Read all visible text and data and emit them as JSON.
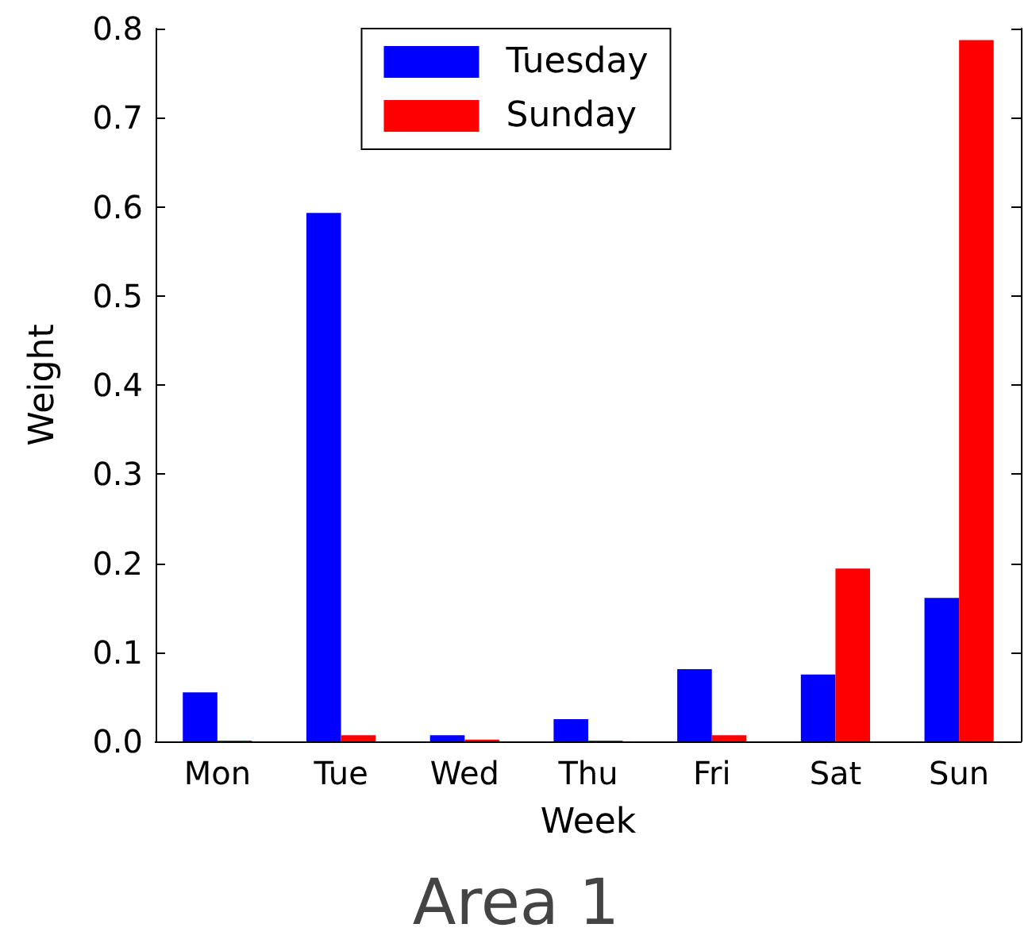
{
  "chart_data": {
    "type": "bar",
    "title": "Area 1",
    "xlabel": "Week",
    "ylabel": "Weight",
    "categories": [
      "Mon",
      "Tue",
      "Wed",
      "Thu",
      "Fri",
      "Sat",
      "Sun"
    ],
    "series": [
      {
        "name": "Tuesday",
        "color": "#0000ff",
        "values": [
          0.055,
          0.593,
          0.007,
          0.025,
          0.081,
          0.075,
          0.161
        ]
      },
      {
        "name": "Sunday",
        "color": "#ff0000",
        "values": [
          0.001,
          0.007,
          0.002,
          0.001,
          0.007,
          0.194,
          0.787
        ]
      }
    ],
    "ylim": [
      0,
      0.8
    ],
    "yticks": [
      {
        "value": 0,
        "label": "0.0"
      },
      0.1,
      0.2,
      0.3,
      0.4,
      0.5,
      0.6,
      0.7,
      0.8
    ],
    "grid": false,
    "legend": "top"
  }
}
